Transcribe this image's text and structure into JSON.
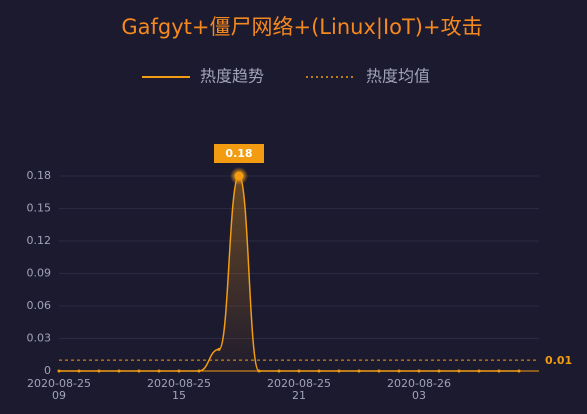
{
  "chart_data": {
    "type": "line",
    "title": "Gafgyt+僵尸网络+(Linux|IoT)+攻击",
    "categories": [
      "2020-08-25\n09",
      null,
      null,
      null,
      null,
      null,
      "2020-08-25\n15",
      null,
      null,
      null,
      null,
      null,
      "2020-08-25\n21",
      null,
      null,
      null,
      null,
      null,
      "2020-08-26\n03",
      null,
      null,
      null,
      null,
      null
    ],
    "series": [
      {
        "name": "热度趋势",
        "color": "#f39c12",
        "values": [
          0,
          0,
          0,
          0,
          0,
          0,
          0,
          0,
          0.02,
          0.18,
          0,
          0,
          0,
          0,
          0,
          0,
          0,
          0,
          0,
          0,
          0,
          0,
          0,
          0
        ],
        "max_label": 0.18
      }
    ],
    "mean_line": {
      "name": "热度均值",
      "value": 0.01
    },
    "ylim": [
      0,
      0.18
    ],
    "yticks": [
      0,
      0.03,
      0.06,
      0.09,
      0.12,
      0.15,
      0.18
    ],
    "grid": true
  }
}
